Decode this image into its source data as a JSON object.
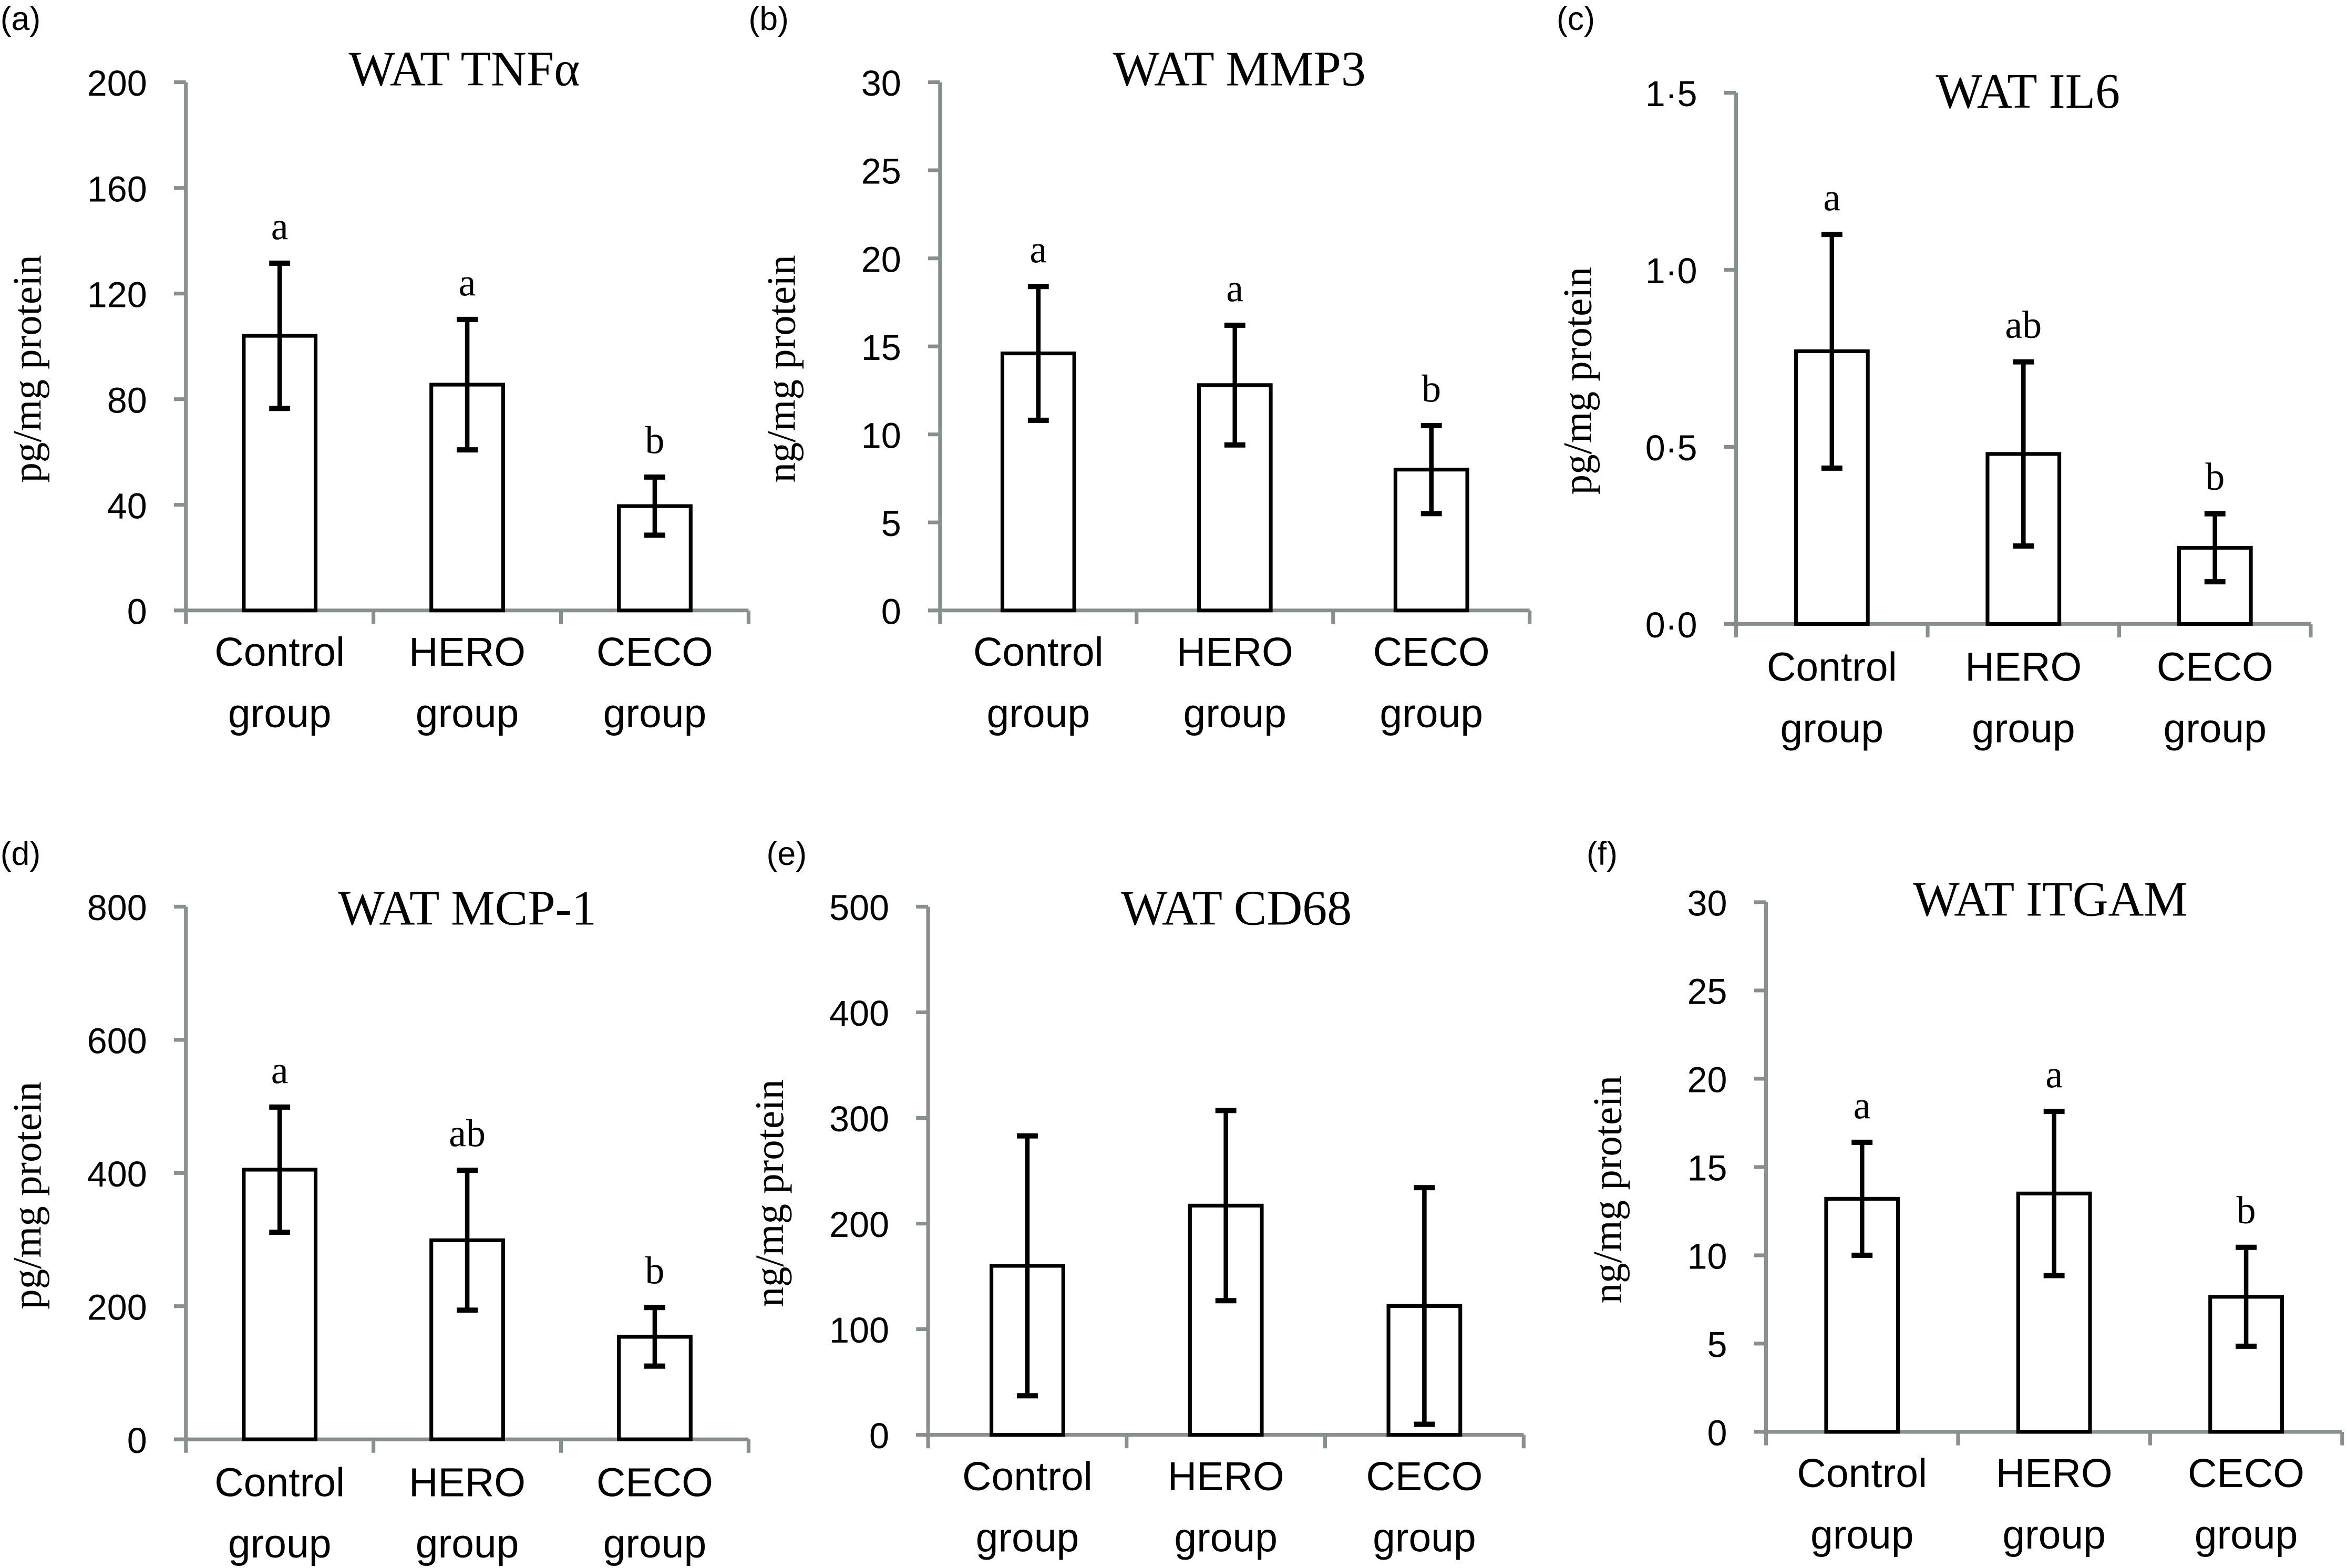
{
  "chart_data": [
    {
      "panel": "(a)",
      "type": "bar",
      "title": "WAT TNFα",
      "ylabel": "pg/mg protein",
      "categories": [
        [
          "Control",
          "group"
        ],
        [
          "HERO",
          "group"
        ],
        [
          "CECO",
          "group"
        ]
      ],
      "values": [
        104,
        85.5,
        39.5
      ],
      "errors": [
        27.5,
        24.7,
        11
      ],
      "significance": [
        "a",
        "a",
        "b"
      ],
      "ylim": [
        0,
        200
      ],
      "yticks": [
        0,
        40,
        80,
        120,
        160,
        200
      ],
      "ytick_labels": [
        "0",
        "40",
        "80",
        "120",
        "160",
        "200"
      ]
    },
    {
      "panel": "(b)",
      "type": "bar",
      "title": "WAT MMP3",
      "ylabel": "ng/mg protein",
      "categories": [
        [
          "Control",
          "group"
        ],
        [
          "HERO",
          "group"
        ],
        [
          "CECO",
          "group"
        ]
      ],
      "values": [
        14.6,
        12.8,
        8.0
      ],
      "errors": [
        3.8,
        3.4,
        2.5
      ],
      "significance": [
        "a",
        "a",
        "b"
      ],
      "ylim": [
        0,
        30
      ],
      "yticks": [
        0,
        5,
        10,
        15,
        20,
        25,
        30
      ],
      "ytick_labels": [
        "0",
        "5",
        "10",
        "15",
        "20",
        "25",
        "30"
      ]
    },
    {
      "panel": "(c)",
      "type": "bar",
      "title": "WAT IL6",
      "ylabel": "pg/mg protein",
      "categories": [
        [
          "Control",
          "group"
        ],
        [
          "HERO",
          "group"
        ],
        [
          "CECO",
          "group"
        ]
      ],
      "values": [
        0.77,
        0.48,
        0.215
      ],
      "errors": [
        0.33,
        0.26,
        0.096
      ],
      "significance": [
        "a",
        "ab",
        "b"
      ],
      "ylim": [
        0,
        1.5
      ],
      "yticks": [
        0,
        0.5,
        1.0,
        1.5
      ],
      "ytick_labels": [
        "0·0",
        "0·5",
        "1·0",
        "1·5"
      ]
    },
    {
      "panel": "(d)",
      "type": "bar",
      "title": "WAT MCP-1",
      "ylabel": "pg/mg protein",
      "categories": [
        [
          "Control",
          "group"
        ],
        [
          "HERO",
          "group"
        ],
        [
          "CECO",
          "group"
        ]
      ],
      "values": [
        405,
        299,
        154
      ],
      "errors": [
        94,
        105,
        44
      ],
      "significance": [
        "a",
        "ab",
        "b"
      ],
      "ylim": [
        0,
        800
      ],
      "yticks": [
        0,
        200,
        400,
        600,
        800
      ],
      "ytick_labels": [
        "0",
        "200",
        "400",
        "600",
        "800"
      ]
    },
    {
      "panel": "(e)",
      "type": "bar",
      "title": "WAT CD68",
      "ylabel": "ng/mg protein",
      "categories": [
        [
          "Control",
          "group"
        ],
        [
          "HERO",
          "group"
        ],
        [
          "CECO",
          "group"
        ]
      ],
      "values": [
        160,
        217,
        122
      ],
      "errors": [
        123,
        90,
        112
      ],
      "significance": [
        "",
        "",
        ""
      ],
      "ylim": [
        0,
        500
      ],
      "yticks": [
        0,
        100,
        200,
        300,
        400,
        500
      ],
      "ytick_labels": [
        "0",
        "100",
        "200",
        "300",
        "400",
        "500"
      ]
    },
    {
      "panel": "(f)",
      "type": "bar",
      "title": "WAT ITGAM",
      "ylabel": "ng/mg protein",
      "categories": [
        [
          "Control",
          "group"
        ],
        [
          "HERO",
          "group"
        ],
        [
          "CECO",
          "group"
        ]
      ],
      "values": [
        13.2,
        13.5,
        7.65
      ],
      "errors": [
        3.2,
        4.65,
        2.8
      ],
      "significance": [
        "a",
        "a",
        "b"
      ],
      "ylim": [
        0,
        30
      ],
      "yticks": [
        0,
        5,
        10,
        15,
        20,
        25,
        30
      ],
      "ytick_labels": [
        "0",
        "5",
        "10",
        "15",
        "20",
        "25",
        "30"
      ]
    }
  ],
  "colors": {
    "axis": "#87908f",
    "bar_fill": "#ffffff",
    "bar_stroke": "#000000"
  }
}
